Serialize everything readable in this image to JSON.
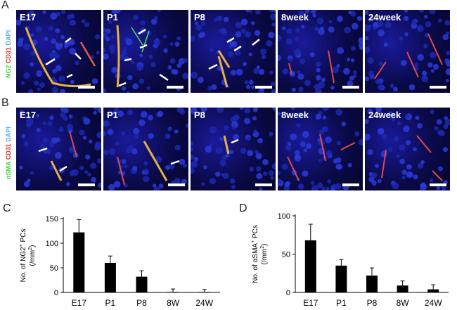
{
  "panel_letters": {
    "a": "A",
    "b": "B",
    "c": "C",
    "d": "D"
  },
  "rows": [
    {
      "stain": {
        "marker": "NG2",
        "endo": "CD31",
        "nuc": "DAPI"
      },
      "tiles": [
        "E17",
        "P1",
        "P8",
        "8week",
        "24week"
      ]
    },
    {
      "stain": {
        "marker": "αSMA",
        "endo": "CD31",
        "nuc": "DAPI"
      },
      "tiles": [
        "E17",
        "P1",
        "P8",
        "8week",
        "24week"
      ]
    }
  ],
  "colors": {
    "green": "#3cd63c",
    "red": "#e03030",
    "blue": "#5aa8e8",
    "bar": "#000000"
  },
  "chart_data": [
    {
      "type": "bar",
      "letter": "C",
      "categories": [
        "E17",
        "P1",
        "P8",
        "8W",
        "24W"
      ],
      "values": [
        122,
        60,
        32,
        1,
        1
      ],
      "errors": [
        26,
        14,
        12,
        6,
        5
      ],
      "ylabel_parts": [
        "No. of NG2",
        "+",
        " PCs",
        "(/mm",
        "2",
        ")"
      ],
      "ylim": [
        0,
        150
      ],
      "yticks": [
        0,
        50,
        100,
        150
      ]
    },
    {
      "type": "bar",
      "letter": "D",
      "categories": [
        "E17",
        "P1",
        "P8",
        "8W",
        "24W"
      ],
      "values": [
        68,
        35,
        22,
        9,
        4
      ],
      "errors": [
        21,
        8,
        10,
        6,
        6
      ],
      "ylabel_parts": [
        "No. of αSMA",
        "+",
        " PCs",
        "(/mm",
        "2",
        ")"
      ],
      "ylim": [
        0,
        100
      ],
      "yticks": [
        0,
        50,
        100
      ]
    }
  ]
}
